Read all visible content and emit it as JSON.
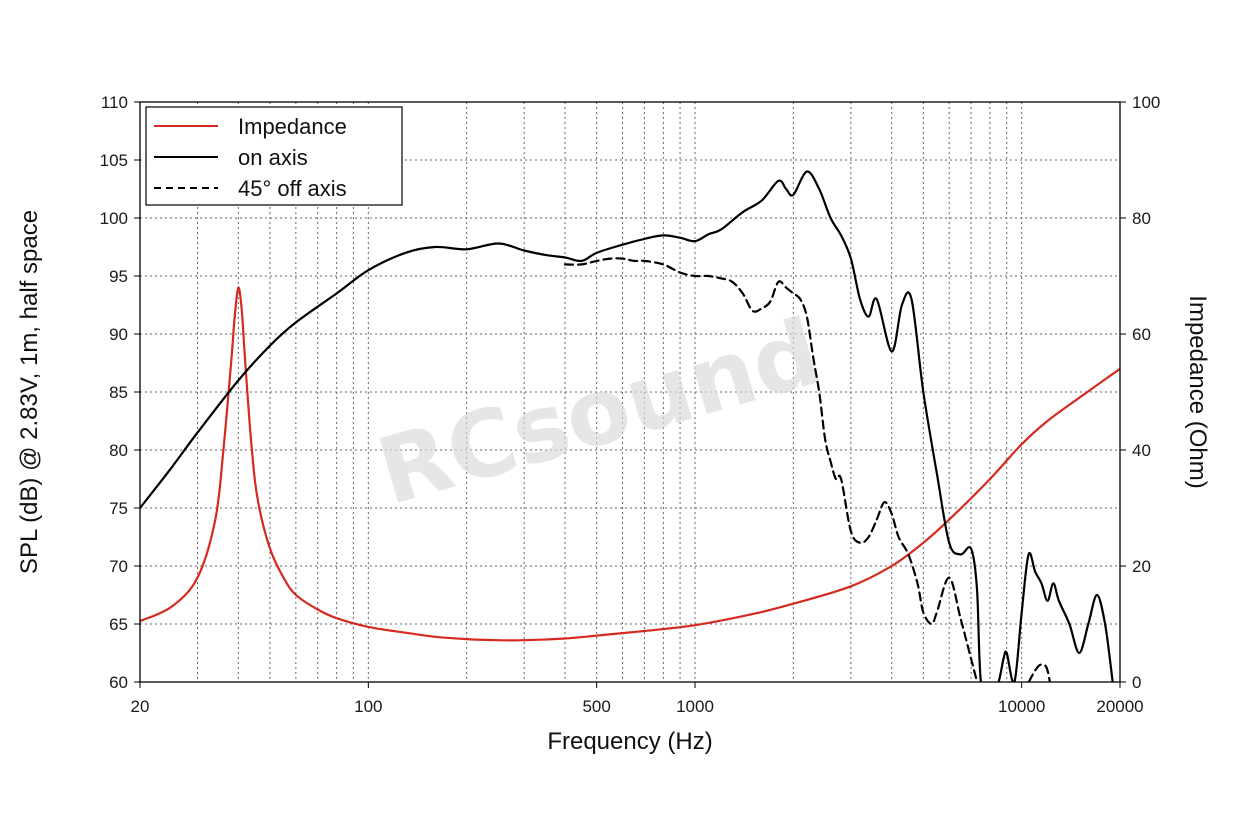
{
  "chart_data": {
    "type": "line",
    "xlabel": "Frequency (Hz)",
    "ylabel": "SPL (dB) @ 2.83V, 1m, half space",
    "y2label": "Impedance (Ohm)",
    "x_scale": "log",
    "xlim": [
      20,
      20000
    ],
    "ylim": [
      60,
      110
    ],
    "y2lim": [
      0,
      100
    ],
    "x_tick_labels": [
      "20",
      "100",
      "500",
      "1000",
      "10000",
      "20000"
    ],
    "x_ticks": [
      20,
      100,
      500,
      1000,
      10000,
      20000
    ],
    "y_ticks": [
      60,
      65,
      70,
      75,
      80,
      85,
      90,
      95,
      100,
      105,
      110
    ],
    "y2_ticks": [
      0,
      20,
      40,
      60,
      80,
      100
    ],
    "grid": true,
    "legend_position": "top-left",
    "watermark": "RCsound",
    "legend": [
      "Impedance",
      "on axis",
      "45° off axis"
    ],
    "series": [
      {
        "name": "Impedance",
        "axis": "right",
        "color": "#d42a20",
        "style": "solid",
        "x": [
          20,
          25,
          30,
          34,
          36,
          38,
          39,
          40,
          41,
          42,
          44,
          46,
          50,
          55,
          60,
          70,
          80,
          100,
          130,
          160,
          200,
          250,
          300,
          400,
          500,
          700,
          1000,
          1500,
          2000,
          3000,
          4000,
          5000,
          6000,
          8000,
          10000,
          12000,
          15000,
          20000
        ],
        "values": [
          10.5,
          13,
          18,
          28,
          40,
          55,
          63,
          68,
          64,
          55,
          40,
          31,
          23,
          18,
          15,
          12.5,
          11,
          9.5,
          8.5,
          7.8,
          7.4,
          7.2,
          7.2,
          7.5,
          8,
          8.8,
          9.8,
          11.7,
          13.5,
          16.5,
          20,
          24,
          28,
          35,
          41,
          45,
          49,
          54
        ]
      },
      {
        "name": "on axis",
        "axis": "left",
        "color": "#000000",
        "style": "solid",
        "x": [
          20,
          25,
          30,
          40,
          50,
          60,
          80,
          100,
          130,
          160,
          200,
          250,
          300,
          350,
          400,
          450,
          500,
          600,
          700,
          800,
          900,
          1000,
          1100,
          1200,
          1400,
          1600,
          1800,
          1900,
          2000,
          2200,
          2400,
          2600,
          2800,
          3000,
          3200,
          3400,
          3600,
          4000,
          4300,
          4600,
          5000,
          5500,
          6000,
          6500,
          7000,
          7300,
          7500,
          8000,
          8500,
          8800,
          9000,
          9500,
          10000,
          10500,
          11000,
          11500,
          12000,
          12500,
          13000,
          14000,
          15000,
          16000,
          17000,
          18000,
          19000
        ],
        "values": [
          75,
          78.5,
          81.5,
          86,
          89,
          91,
          93.5,
          95.5,
          97,
          97.5,
          97.3,
          97.8,
          97.2,
          96.8,
          96.6,
          96.3,
          97,
          97.7,
          98.2,
          98.5,
          98.3,
          98,
          98.6,
          99,
          100.5,
          101.5,
          103.2,
          102.5,
          102,
          104,
          102.5,
          100,
          98.5,
          96.5,
          93,
          91.5,
          93,
          88.5,
          92.5,
          93,
          85,
          78,
          72,
          71,
          71.5,
          68,
          60,
          58,
          60,
          62,
          62.5,
          60,
          66,
          71,
          69.5,
          68.5,
          67,
          68.5,
          67,
          65,
          62.5,
          65,
          67.5,
          65,
          60
        ]
      },
      {
        "name": "45° off axis",
        "axis": "left",
        "color": "#000000",
        "style": "dashed",
        "x": [
          400,
          450,
          500,
          550,
          600,
          650,
          700,
          800,
          900,
          1000,
          1100,
          1200,
          1300,
          1400,
          1500,
          1600,
          1700,
          1800,
          1900,
          2000,
          2100,
          2200,
          2300,
          2400,
          2500,
          2600,
          2700,
          2800,
          3000,
          3200,
          3400,
          3600,
          3800,
          4000,
          4200,
          4500,
          4800,
          5000,
          5300,
          5500,
          6000,
          6500,
          7000,
          7300,
          7600,
          8000,
          9000,
          10000,
          11000,
          11500,
          12000,
          12500
        ],
        "values": [
          96,
          96,
          96.3,
          96.5,
          96.5,
          96.3,
          96.3,
          96,
          95.3,
          95,
          95,
          94.8,
          94.5,
          93.5,
          92,
          92.2,
          92.8,
          94.5,
          94,
          93.5,
          93,
          91.5,
          88,
          85,
          81,
          79,
          77.5,
          77.5,
          73,
          72,
          72.5,
          74,
          75.5,
          74.5,
          72.5,
          71,
          68.5,
          66,
          65,
          66,
          69,
          65.5,
          62,
          60,
          58,
          57,
          58,
          59,
          61,
          61.5,
          61,
          58
        ]
      }
    ]
  }
}
